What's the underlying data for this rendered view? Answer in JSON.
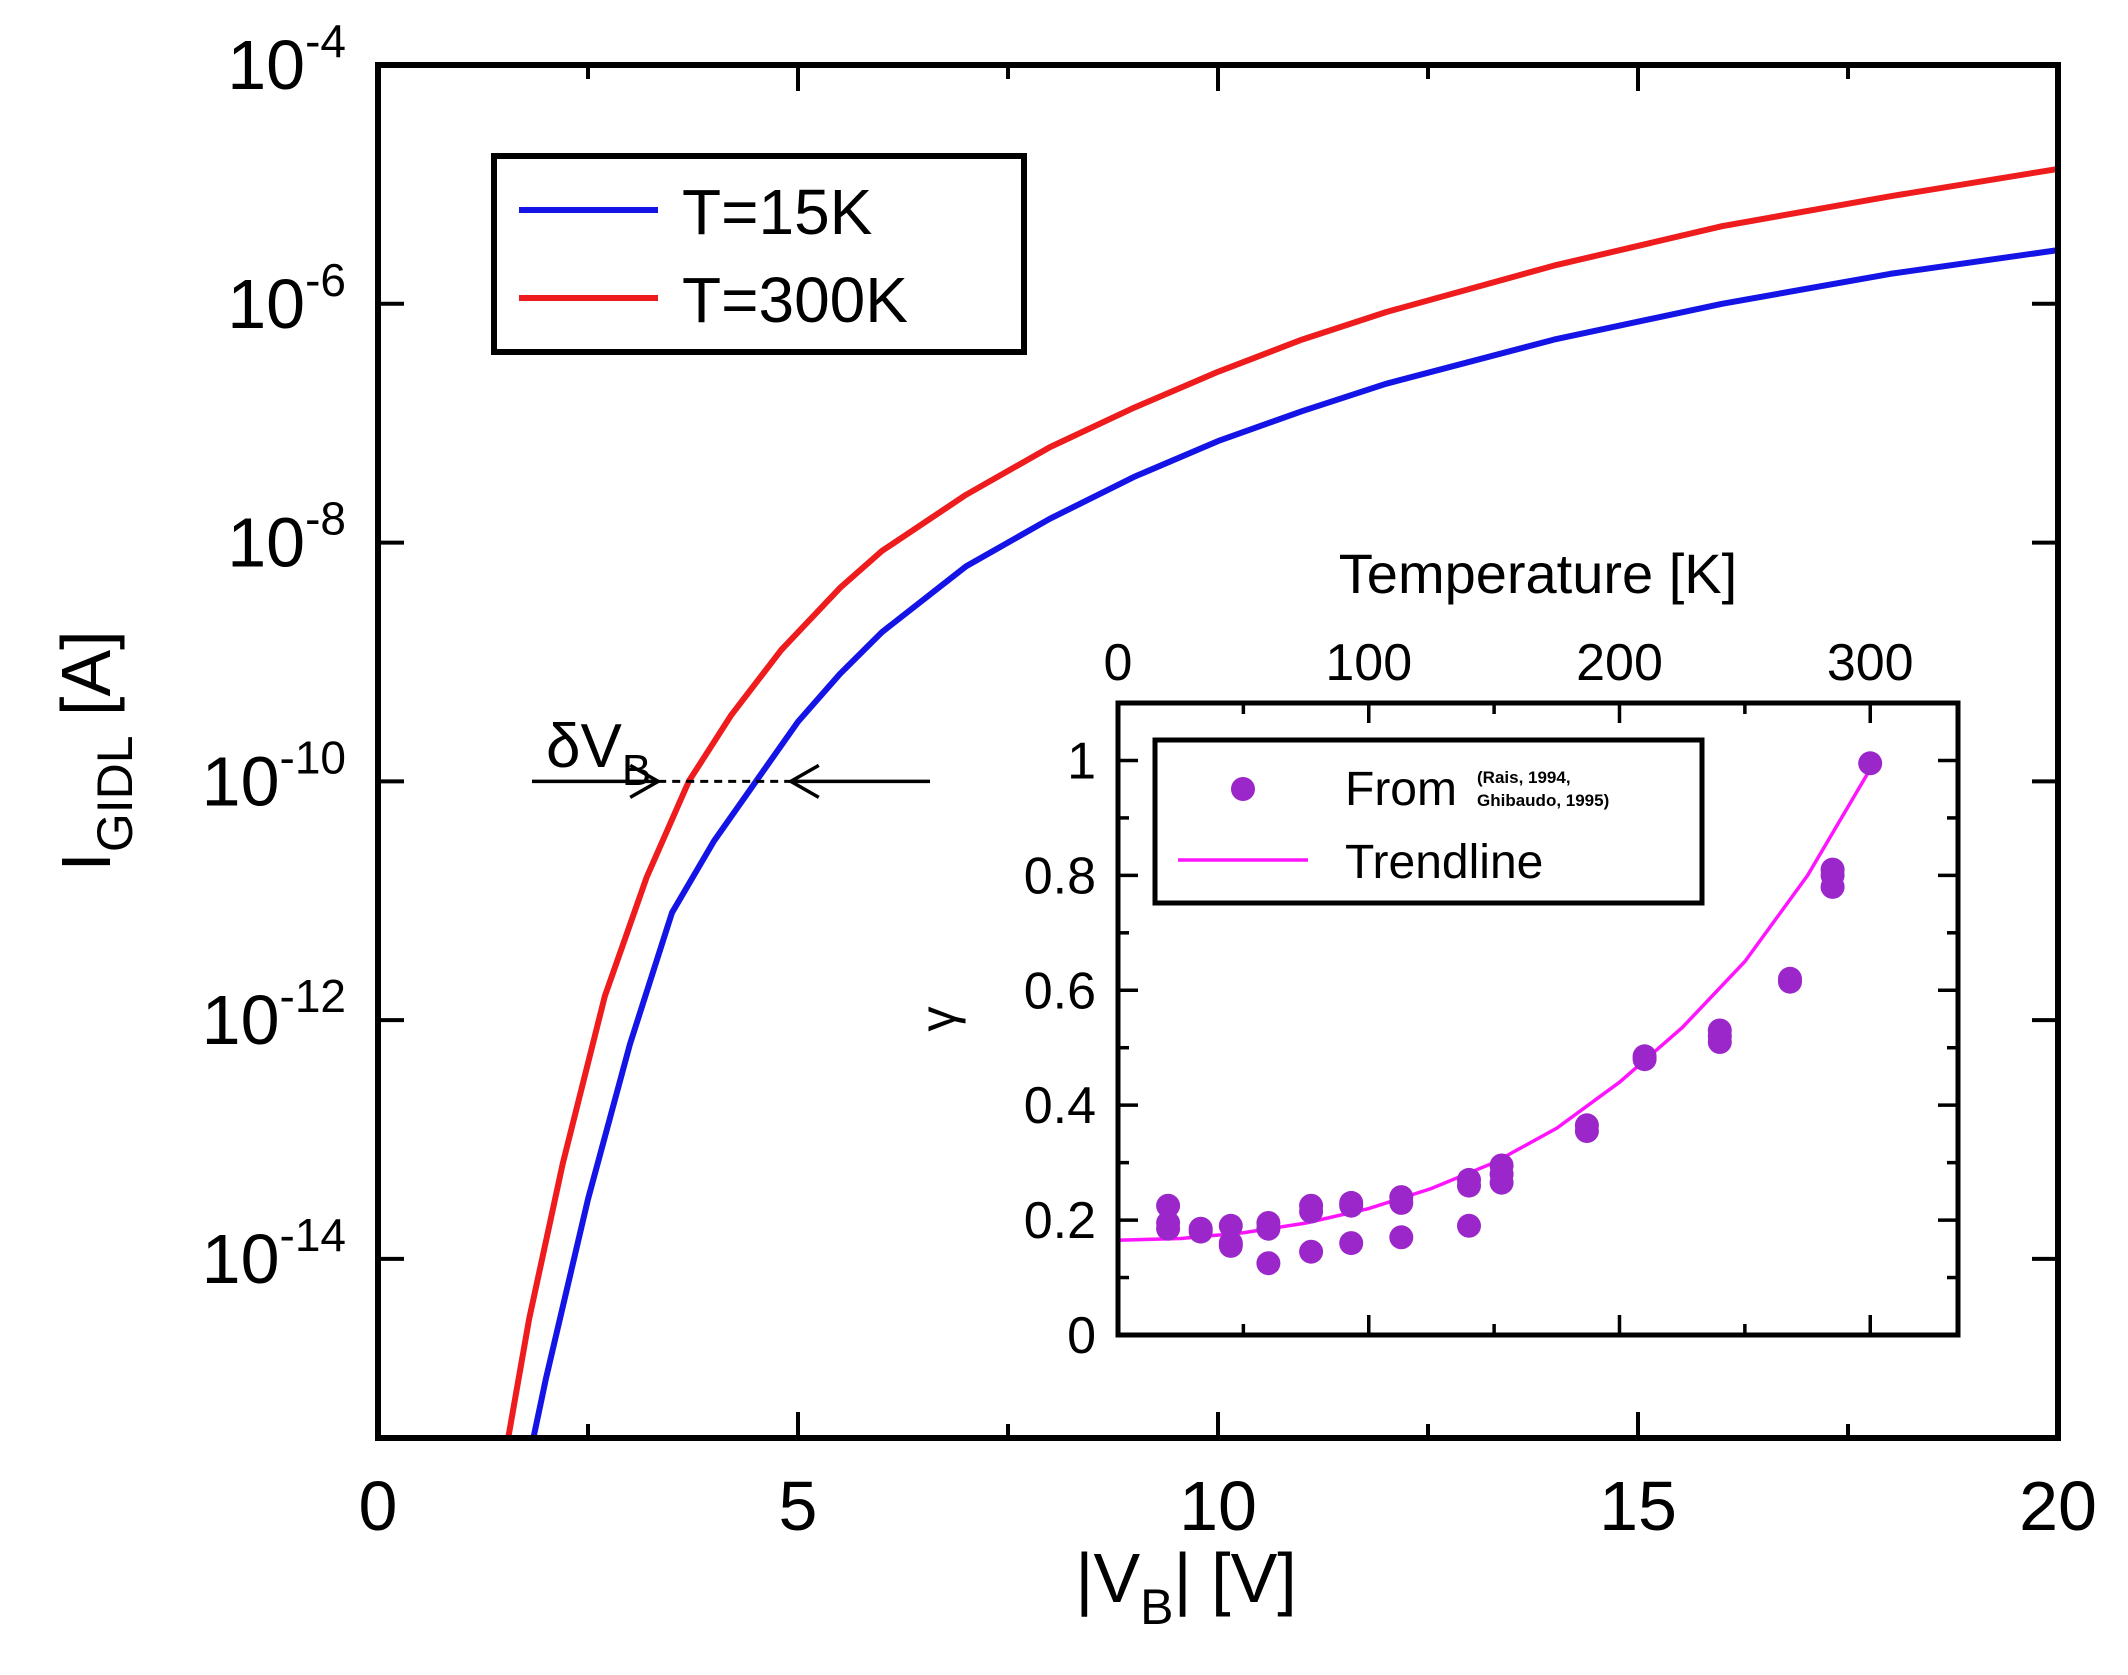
{
  "colors": {
    "series_15K": "#1414e6",
    "series_300K": "#ee1c1c",
    "points": "#9b26c9",
    "trendline": "#ff14ff",
    "axes": "#000000"
  },
  "chart_data": [
    {
      "type": "line",
      "scale": "semilog-y",
      "xlabel_pre": "|V",
      "xlabel_sub": "B",
      "xlabel_post": "| [V]",
      "ylabel_main": "I",
      "ylabel_sub": "GIDL",
      "ylabel_post": " [A]",
      "xlim": [
        0,
        20
      ],
      "ylim_log10": [
        -15.5,
        -4
      ],
      "xticks": [
        0,
        5,
        10,
        15,
        20
      ],
      "xtick_labels": [
        "0",
        "5",
        "10",
        "15",
        "20"
      ],
      "yticks_log10": [
        -4,
        -6,
        -8,
        -10,
        -12,
        -14
      ],
      "ytick_base": "10",
      "ytick_exponents": [
        "-4",
        "-6",
        "-8",
        "-10",
        "-12",
        "-14"
      ],
      "legend": [
        "T=15K",
        "T=300K"
      ],
      "legend_position": "top-left",
      "series": [
        {
          "name": "T=15K",
          "x": [
            1.85,
            2.0,
            2.5,
            3.0,
            3.5,
            4.0,
            4.5,
            5.0,
            5.5,
            6.0,
            7.0,
            8.0,
            9.0,
            10.0,
            11.0,
            12.0,
            14.0,
            16.0,
            18.0,
            20.0
          ],
          "log10_y": [
            -15.5,
            -15.0,
            -13.5,
            -12.2,
            -11.1,
            -10.5,
            -10.0,
            -9.5,
            -9.1,
            -8.75,
            -8.2,
            -7.8,
            -7.45,
            -7.15,
            -6.9,
            -6.67,
            -6.3,
            -6.0,
            -5.75,
            -5.55
          ]
        },
        {
          "name": "T=300K",
          "x": [
            1.55,
            1.8,
            2.2,
            2.7,
            3.2,
            3.7,
            4.2,
            4.8,
            5.5,
            6.0,
            7.0,
            8.0,
            9.0,
            10.0,
            11.0,
            12.0,
            14.0,
            16.0,
            18.0,
            20.0
          ],
          "log10_y": [
            -15.5,
            -14.5,
            -13.2,
            -11.8,
            -10.8,
            -10.0,
            -9.45,
            -8.9,
            -8.38,
            -8.07,
            -7.6,
            -7.2,
            -6.87,
            -6.57,
            -6.3,
            -6.07,
            -5.68,
            -5.35,
            -5.1,
            -4.87
          ]
        }
      ],
      "annotation": {
        "symbol": "δV",
        "subscript": "B",
        "arrow_y_log10": -10,
        "from_x": 3.55,
        "to_x": 4.7
      }
    },
    {
      "type": "scatter",
      "title_top": "Temperature [K]",
      "ylabel": "γ",
      "xlim": [
        0,
        335
      ],
      "ylim": [
        0,
        1.1
      ],
      "xticks": [
        0,
        100,
        200,
        300
      ],
      "xtick_labels": [
        "0",
        "100",
        "200",
        "300"
      ],
      "yticks": [
        0,
        0.2,
        0.4,
        0.6,
        0.8,
        1
      ],
      "ytick_labels": [
        "0",
        "0.2",
        "0.4",
        "0.6",
        "0.8",
        "1"
      ],
      "legend_position": "top-left",
      "legend_points_label": "From",
      "legend_points_citation_line1": "(Rais, 1994,",
      "legend_points_citation_line2": "Ghibaudo,  1995)",
      "legend_trend_label": "Trendline",
      "points": {
        "x": [
          20,
          20,
          20,
          33,
          33,
          45,
          45,
          45,
          60,
          60,
          60,
          77,
          77,
          77,
          93,
          93,
          93,
          113,
          113,
          113,
          140,
          140,
          140,
          153,
          153,
          153,
          187,
          187,
          210,
          210,
          240,
          240,
          240,
          268,
          268,
          285,
          285,
          285,
          300
        ],
        "y": [
          0.225,
          0.195,
          0.185,
          0.185,
          0.18,
          0.19,
          0.16,
          0.155,
          0.195,
          0.185,
          0.125,
          0.225,
          0.215,
          0.145,
          0.23,
          0.225,
          0.16,
          0.24,
          0.23,
          0.17,
          0.27,
          0.26,
          0.19,
          0.295,
          0.28,
          0.265,
          0.365,
          0.355,
          0.485,
          0.48,
          0.53,
          0.52,
          0.51,
          0.62,
          0.615,
          0.81,
          0.8,
          0.78,
          0.995
        ]
      },
      "trendline": {
        "x": [
          0,
          25,
          50,
          75,
          100,
          125,
          150,
          175,
          200,
          225,
          250,
          275,
          300
        ],
        "y": [
          0.165,
          0.168,
          0.178,
          0.195,
          0.22,
          0.255,
          0.3,
          0.36,
          0.44,
          0.535,
          0.65,
          0.8,
          0.985
        ]
      }
    }
  ]
}
